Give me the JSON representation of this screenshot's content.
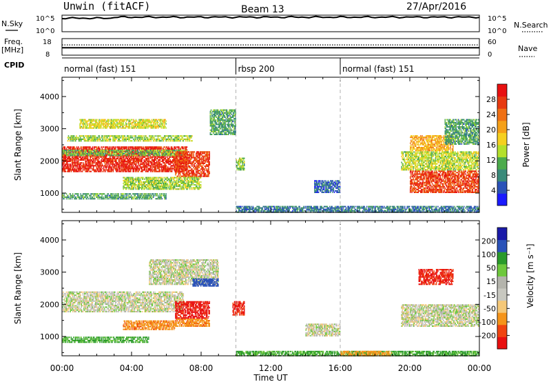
{
  "header": {
    "radar": "Unwin (fitACF)",
    "beam": "Beam 13",
    "date": "27/Apr/2016"
  },
  "panels": {
    "nsky": {
      "left_label": "N.Sky",
      "left_ticks": [
        "10^5",
        "10^0"
      ],
      "right_ticks": [
        "10^5",
        "10^0"
      ],
      "right_label": "N.Search"
    },
    "freq": {
      "left_label_1": "Freq.",
      "left_label_2": "[MHz]",
      "left_ticks": [
        "18",
        "8"
      ],
      "right_ticks": [
        "60",
        "0"
      ],
      "right_label": "Nave"
    },
    "cpid": {
      "label": "CPID",
      "segments": [
        {
          "name": "normal (fast) 151",
          "start_hour": 0,
          "end_hour": 10
        },
        {
          "name": "rbsp 200",
          "start_hour": 10,
          "end_hour": 16
        },
        {
          "name": "normal (fast) 151",
          "start_hour": 16,
          "end_hour": 24
        }
      ]
    }
  },
  "colors": {
    "power_scale": [
      "#1a1aff",
      "#2a52b8",
      "#3a8a7a",
      "#4cab4c",
      "#b4e02c",
      "#f5d020",
      "#f5a018",
      "#f07014",
      "#e83a10",
      "#e81010"
    ],
    "velocity_scale": [
      "#e81010",
      "#f04410",
      "#f5941a",
      "#f5c878",
      "#c8c8c0",
      "#b4b4ac",
      "#6ec83c",
      "#2a9a2a",
      "#2a52b8",
      "#1a1aa8"
    ],
    "dash_line": "#b0b0b0"
  },
  "chart_data": [
    {
      "type": "heatmap",
      "name": "power",
      "ylabel": "Slant Range [km]",
      "yticks": [
        "1000",
        "2000",
        "3000",
        "4000"
      ],
      "ylim": [
        400,
        4600
      ],
      "xlim": [
        0,
        24
      ],
      "colorbar_label": "Power [dB]",
      "colorbar_ticks": [
        "4",
        "8",
        "12",
        "16",
        "20",
        "24",
        "28"
      ],
      "colorbar_range": [
        0,
        32
      ],
      "regions": [
        {
          "t": [
            0.0,
            7.2
          ],
          "r": [
            1650,
            2450
          ],
          "v": 29
        },
        {
          "t": [
            0.0,
            7.2
          ],
          "r": [
            2150,
            2350
          ],
          "v": 12
        },
        {
          "t": [
            0.3,
            7.5
          ],
          "r": [
            2600,
            2800
          ],
          "v": 14
        },
        {
          "t": [
            1.0,
            6.0
          ],
          "r": [
            3000,
            3300
          ],
          "v": 16
        },
        {
          "t": [
            6.5,
            8.5
          ],
          "r": [
            1500,
            2300
          ],
          "v": 27
        },
        {
          "t": [
            3.5,
            8.0
          ],
          "r": [
            1100,
            1500
          ],
          "v": 14
        },
        {
          "t": [
            0.0,
            6.0
          ],
          "r": [
            800,
            1000
          ],
          "v": 10
        },
        {
          "t": [
            8.5,
            10.0
          ],
          "r": [
            2800,
            3600
          ],
          "v": 10
        },
        {
          "t": [
            10.0,
            10.5
          ],
          "r": [
            1700,
            2100
          ],
          "v": 13
        },
        {
          "t": [
            10.0,
            24.0
          ],
          "r": [
            300,
            600
          ],
          "v": 7
        },
        {
          "t": [
            14.5,
            16.0
          ],
          "r": [
            1000,
            1400
          ],
          "v": 6
        },
        {
          "t": [
            20.0,
            24.0
          ],
          "r": [
            1000,
            1700
          ],
          "v": 27
        },
        {
          "t": [
            19.5,
            24.0
          ],
          "r": [
            1700,
            2300
          ],
          "v": 15
        },
        {
          "t": [
            20.0,
            22.5
          ],
          "r": [
            2300,
            2800
          ],
          "v": 20
        },
        {
          "t": [
            22.0,
            24.0
          ],
          "r": [
            2500,
            3300
          ],
          "v": 10
        }
      ]
    },
    {
      "type": "heatmap",
      "name": "velocity",
      "ylabel": "Slant Range [km]",
      "yticks": [
        "1000",
        "2000",
        "3000",
        "4000"
      ],
      "ylim": [
        400,
        4600
      ],
      "xlim": [
        0,
        24
      ],
      "xlabel": "Time UT",
      "xticks": [
        "00:00",
        "04:00",
        "08:00",
        "12:00",
        "16:00",
        "20:00",
        "00:00"
      ],
      "colorbar_label": "Velocity [m s⁻¹]",
      "colorbar_ticks": [
        "200",
        "100",
        "50",
        "15",
        "-15",
        "-50",
        "-100",
        "-200"
      ],
      "colorbar_range": [
        -250,
        250
      ],
      "regions": [
        {
          "t": [
            0.0,
            7.0
          ],
          "r": [
            1750,
            2400
          ],
          "v": 0
        },
        {
          "t": [
            6.5,
            8.5
          ],
          "r": [
            1550,
            2100
          ],
          "v": -220
        },
        {
          "t": [
            6.5,
            8.5
          ],
          "r": [
            1300,
            1550
          ],
          "v": -80
        },
        {
          "t": [
            3.5,
            6.5
          ],
          "r": [
            1200,
            1500
          ],
          "v": -80
        },
        {
          "t": [
            5.0,
            9.0
          ],
          "r": [
            2600,
            3400
          ],
          "v": 0
        },
        {
          "t": [
            7.5,
            9.0
          ],
          "r": [
            2550,
            2800
          ],
          "v": 150
        },
        {
          "t": [
            9.8,
            10.5
          ],
          "r": [
            1650,
            2100
          ],
          "v": -210
        },
        {
          "t": [
            0.0,
            5.0
          ],
          "r": [
            800,
            1000
          ],
          "v": 60
        },
        {
          "t": [
            10.0,
            24.0
          ],
          "r": [
            300,
            550
          ],
          "v": 60
        },
        {
          "t": [
            16.0,
            19.0
          ],
          "r": [
            300,
            550
          ],
          "v": -70
        },
        {
          "t": [
            19.5,
            24.0
          ],
          "r": [
            1300,
            2000
          ],
          "v": 0
        },
        {
          "t": [
            20.5,
            22.5
          ],
          "r": [
            2600,
            3100
          ],
          "v": -210
        },
        {
          "t": [
            14.0,
            16.0
          ],
          "r": [
            1000,
            1400
          ],
          "v": 0
        }
      ]
    }
  ],
  "nsky_series_level": 0.88,
  "nsearch_series_level": 0.92,
  "freq_series_level": 0.45,
  "nave_series_level": 0.62
}
